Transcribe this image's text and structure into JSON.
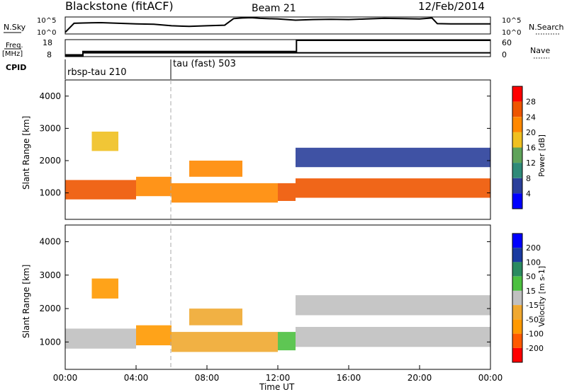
{
  "header": {
    "station": "Blackstone (fitACF)",
    "beam": "Beam 21",
    "date": "12/Feb/2014"
  },
  "top_panels": {
    "nsky_label": "N.Sky",
    "nsky_ticks": [
      "10^5",
      "10^0"
    ],
    "nsearch_label": "N.Search",
    "nsearch_ticks": [
      "10^5",
      "10^0"
    ],
    "freq_label_top": "Freq.",
    "freq_label_bottom": "[MHz]",
    "freq_ticks": [
      "18",
      "8"
    ],
    "nave_label": "Nave",
    "nave_ticks": [
      "60",
      "0"
    ],
    "cpid_label": "CPID",
    "cpid_segments": [
      "rbsp-tau 210",
      "tau (fast) 503"
    ]
  },
  "x_axis": {
    "label": "Time UT",
    "ticks": [
      "00:00",
      "04:00",
      "08:00",
      "12:00",
      "16:00",
      "20:00",
      "00:00"
    ]
  },
  "colors": {
    "power": [
      "#0000ff",
      "#2a3f9a",
      "#2f8a78",
      "#5fa35a",
      "#f0c020",
      "#ff8800",
      "#ee5500",
      "#ff0000"
    ],
    "velocity": [
      "#ff0000",
      "#ff5a00",
      "#ff9900",
      "#f0a830",
      "#c0c0c0",
      "#4cc040",
      "#2a8a60",
      "#1a3aa0",
      "#0000ff"
    ]
  },
  "chart_data": [
    {
      "type": "line",
      "title": "N.Sky / N.Search",
      "x_unit": "hours UT",
      "x": [
        0,
        0.5,
        1,
        2,
        3,
        4,
        5,
        6,
        7,
        8,
        9,
        9.5,
        10,
        10.5,
        11,
        12,
        13,
        14,
        15,
        16,
        17,
        18,
        19,
        20,
        20.7,
        21,
        22,
        23,
        24
      ],
      "series": [
        {
          "name": "N.Sky",
          "values": [
            0.3,
            3.2,
            3.3,
            3.4,
            3.2,
            3.0,
            2.9,
            2.4,
            2.2,
            2.4,
            2.6,
            4.7,
            4.9,
            5.0,
            4.8,
            4.6,
            4.2,
            4.4,
            4.5,
            4.4,
            4.6,
            4.8,
            4.7,
            4.6,
            4.9,
            3.1,
            3.0,
            3.0,
            3.0
          ]
        }
      ],
      "ylim": [
        0,
        5
      ],
      "ytick_labels": [
        "10^0",
        "10^5"
      ]
    },
    {
      "type": "line",
      "title": "Freq. [MHz] / Nave",
      "x_unit": "hours UT",
      "x": [
        0,
        1,
        6,
        6.1,
        13,
        13.05,
        24
      ],
      "series": [
        {
          "name": "Freq.",
          "values": [
            8,
            10,
            10,
            10,
            10,
            10,
            10
          ]
        },
        {
          "name": "Nave",
          "values": [
            4,
            17,
            17,
            17,
            17,
            60,
            60
          ]
        }
      ],
      "ylim_freq": [
        8,
        18
      ],
      "ylim_nave": [
        0,
        60
      ]
    },
    {
      "type": "heatmap",
      "title": "Power [dB]",
      "xlabel": "Time UT",
      "ylabel": "Slant Range [km]",
      "xlim": [
        0,
        24
      ],
      "ylim": [
        180,
        4500
      ],
      "yticks": [
        1000,
        2000,
        3000,
        4000
      ],
      "colorbar_label": "Power [dB]",
      "colorbar_ticks": [
        4,
        8,
        12,
        16,
        20,
        24,
        28
      ],
      "colorbar_range": [
        0,
        32
      ],
      "regions": [
        {
          "t": [
            0,
            4
          ],
          "r": [
            800,
            1400
          ],
          "value": 24
        },
        {
          "t": [
            4,
            6
          ],
          "r": [
            900,
            1500
          ],
          "value": 20
        },
        {
          "t": [
            6,
            12
          ],
          "r": [
            700,
            1300
          ],
          "value": 20
        },
        {
          "t": [
            12,
            13
          ],
          "r": [
            750,
            1300
          ],
          "value": 24
        },
        {
          "t": [
            13,
            24
          ],
          "r": [
            850,
            1450
          ],
          "value": 26
        },
        {
          "t": [
            1.5,
            3
          ],
          "r": [
            2300,
            2900
          ],
          "value": 16
        },
        {
          "t": [
            7,
            10
          ],
          "r": [
            1500,
            2000
          ],
          "value": 22
        },
        {
          "t": [
            13,
            24
          ],
          "r": [
            1800,
            2400
          ],
          "value": 6
        }
      ]
    },
    {
      "type": "heatmap",
      "title": "Velocity [m s-1]",
      "xlabel": "Time UT",
      "ylabel": "Slant Range [km]",
      "xlim": [
        0,
        24
      ],
      "ylim": [
        180,
        4500
      ],
      "yticks": [
        1000,
        2000,
        3000,
        4000
      ],
      "colorbar_label": "Velocity [m s-1]",
      "colorbar_ticks": [
        200,
        100,
        50,
        15,
        -15,
        -50,
        -100,
        -200
      ],
      "regions": [
        {
          "t": [
            0,
            4
          ],
          "r": [
            800,
            1400
          ],
          "value": 0
        },
        {
          "t": [
            4,
            6
          ],
          "r": [
            900,
            1500
          ],
          "value": -60
        },
        {
          "t": [
            6,
            12
          ],
          "r": [
            700,
            1300
          ],
          "value": -40
        },
        {
          "t": [
            12,
            13
          ],
          "r": [
            750,
            1300
          ],
          "value": 30
        },
        {
          "t": [
            13,
            24
          ],
          "r": [
            850,
            1450
          ],
          "value": 0
        },
        {
          "t": [
            1.5,
            3
          ],
          "r": [
            2300,
            2900
          ],
          "value": -90
        },
        {
          "t": [
            7,
            10
          ],
          "r": [
            1500,
            2000
          ],
          "value": -40
        },
        {
          "t": [
            13,
            24
          ],
          "r": [
            1800,
            2400
          ],
          "value": 0
        }
      ]
    }
  ]
}
